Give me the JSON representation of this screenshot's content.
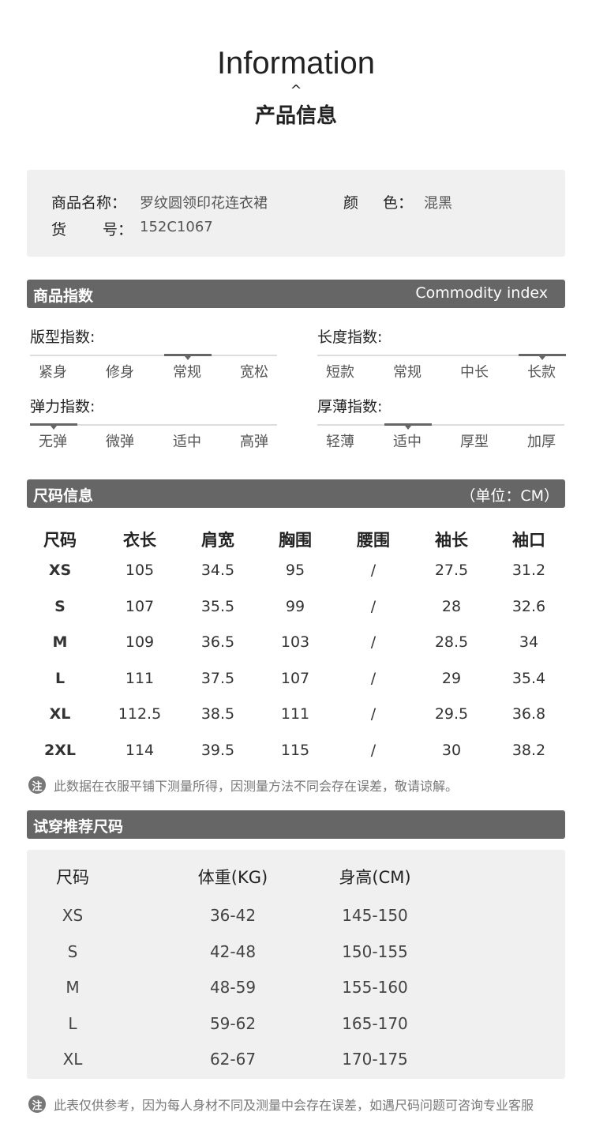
{
  "header": {
    "title": "Information",
    "caret": "^",
    "subtitle": "产品信息"
  },
  "product": {
    "name_label": "商品名称：",
    "name": "罗纹圆领印花连衣裙",
    "color_label_1": "颜",
    "color_label_2": "色：",
    "color": "混黑",
    "sku_label_1": "货",
    "sku_label_2": "号：",
    "sku": "152C1067"
  },
  "index_section": {
    "title": "商品指数",
    "title_en": "Commodity index",
    "groups": [
      {
        "label": "版型指数:",
        "options": [
          "紧身",
          "修身",
          "常规",
          "宽松"
        ],
        "selected": 2
      },
      {
        "label": "长度指数:",
        "options": [
          "短款",
          "常规",
          "中长",
          "长款"
        ],
        "selected": 3
      },
      {
        "label": "弹力指数:",
        "options": [
          "无弹",
          "微弹",
          "适中",
          "高弹"
        ],
        "selected": 0
      },
      {
        "label": "厚薄指数:",
        "options": [
          "轻薄",
          "适中",
          "厚型",
          "加厚"
        ],
        "selected": 1
      }
    ]
  },
  "size_section": {
    "title": "尺码信息",
    "unit": "（单位：CM）",
    "headers": [
      "尺码",
      "衣长",
      "肩宽",
      "胸围",
      "腰围",
      "袖长",
      "袖口"
    ],
    "rows": [
      [
        "XS",
        "105",
        "34.5",
        "95",
        "/",
        "27.5",
        "31.2"
      ],
      [
        "S",
        "107",
        "35.5",
        "99",
        "/",
        "28",
        "32.6"
      ],
      [
        "M",
        "109",
        "36.5",
        "103",
        "/",
        "28.5",
        "34"
      ],
      [
        "L",
        "111",
        "37.5",
        "107",
        "/",
        "29",
        "35.4"
      ],
      [
        "XL",
        "112.5",
        "38.5",
        "111",
        "/",
        "29.5",
        "36.8"
      ],
      [
        "2XL",
        "114",
        "39.5",
        "115",
        "/",
        "30",
        "38.2"
      ]
    ],
    "note_icon": "注",
    "note": "此数据在衣服平铺下测量所得，因测量方法不同会存在误差，敬请谅解。"
  },
  "fit_section": {
    "title": "试穿推荐尺码",
    "headers": [
      "尺码",
      "体重(KG)",
      "身高(CM)"
    ],
    "rows": [
      [
        "XS",
        "36-42",
        "145-150"
      ],
      [
        "S",
        "42-48",
        "150-155"
      ],
      [
        "M",
        "48-59",
        "155-160"
      ],
      [
        "L",
        "59-62",
        "165-170"
      ],
      [
        "XL",
        "62-67",
        "170-175"
      ]
    ],
    "note_icon": "注",
    "note": "此表仅供参考，因为每人身材不同及测量中会存在误差，如遇尺码问题可咨询专业客服"
  }
}
